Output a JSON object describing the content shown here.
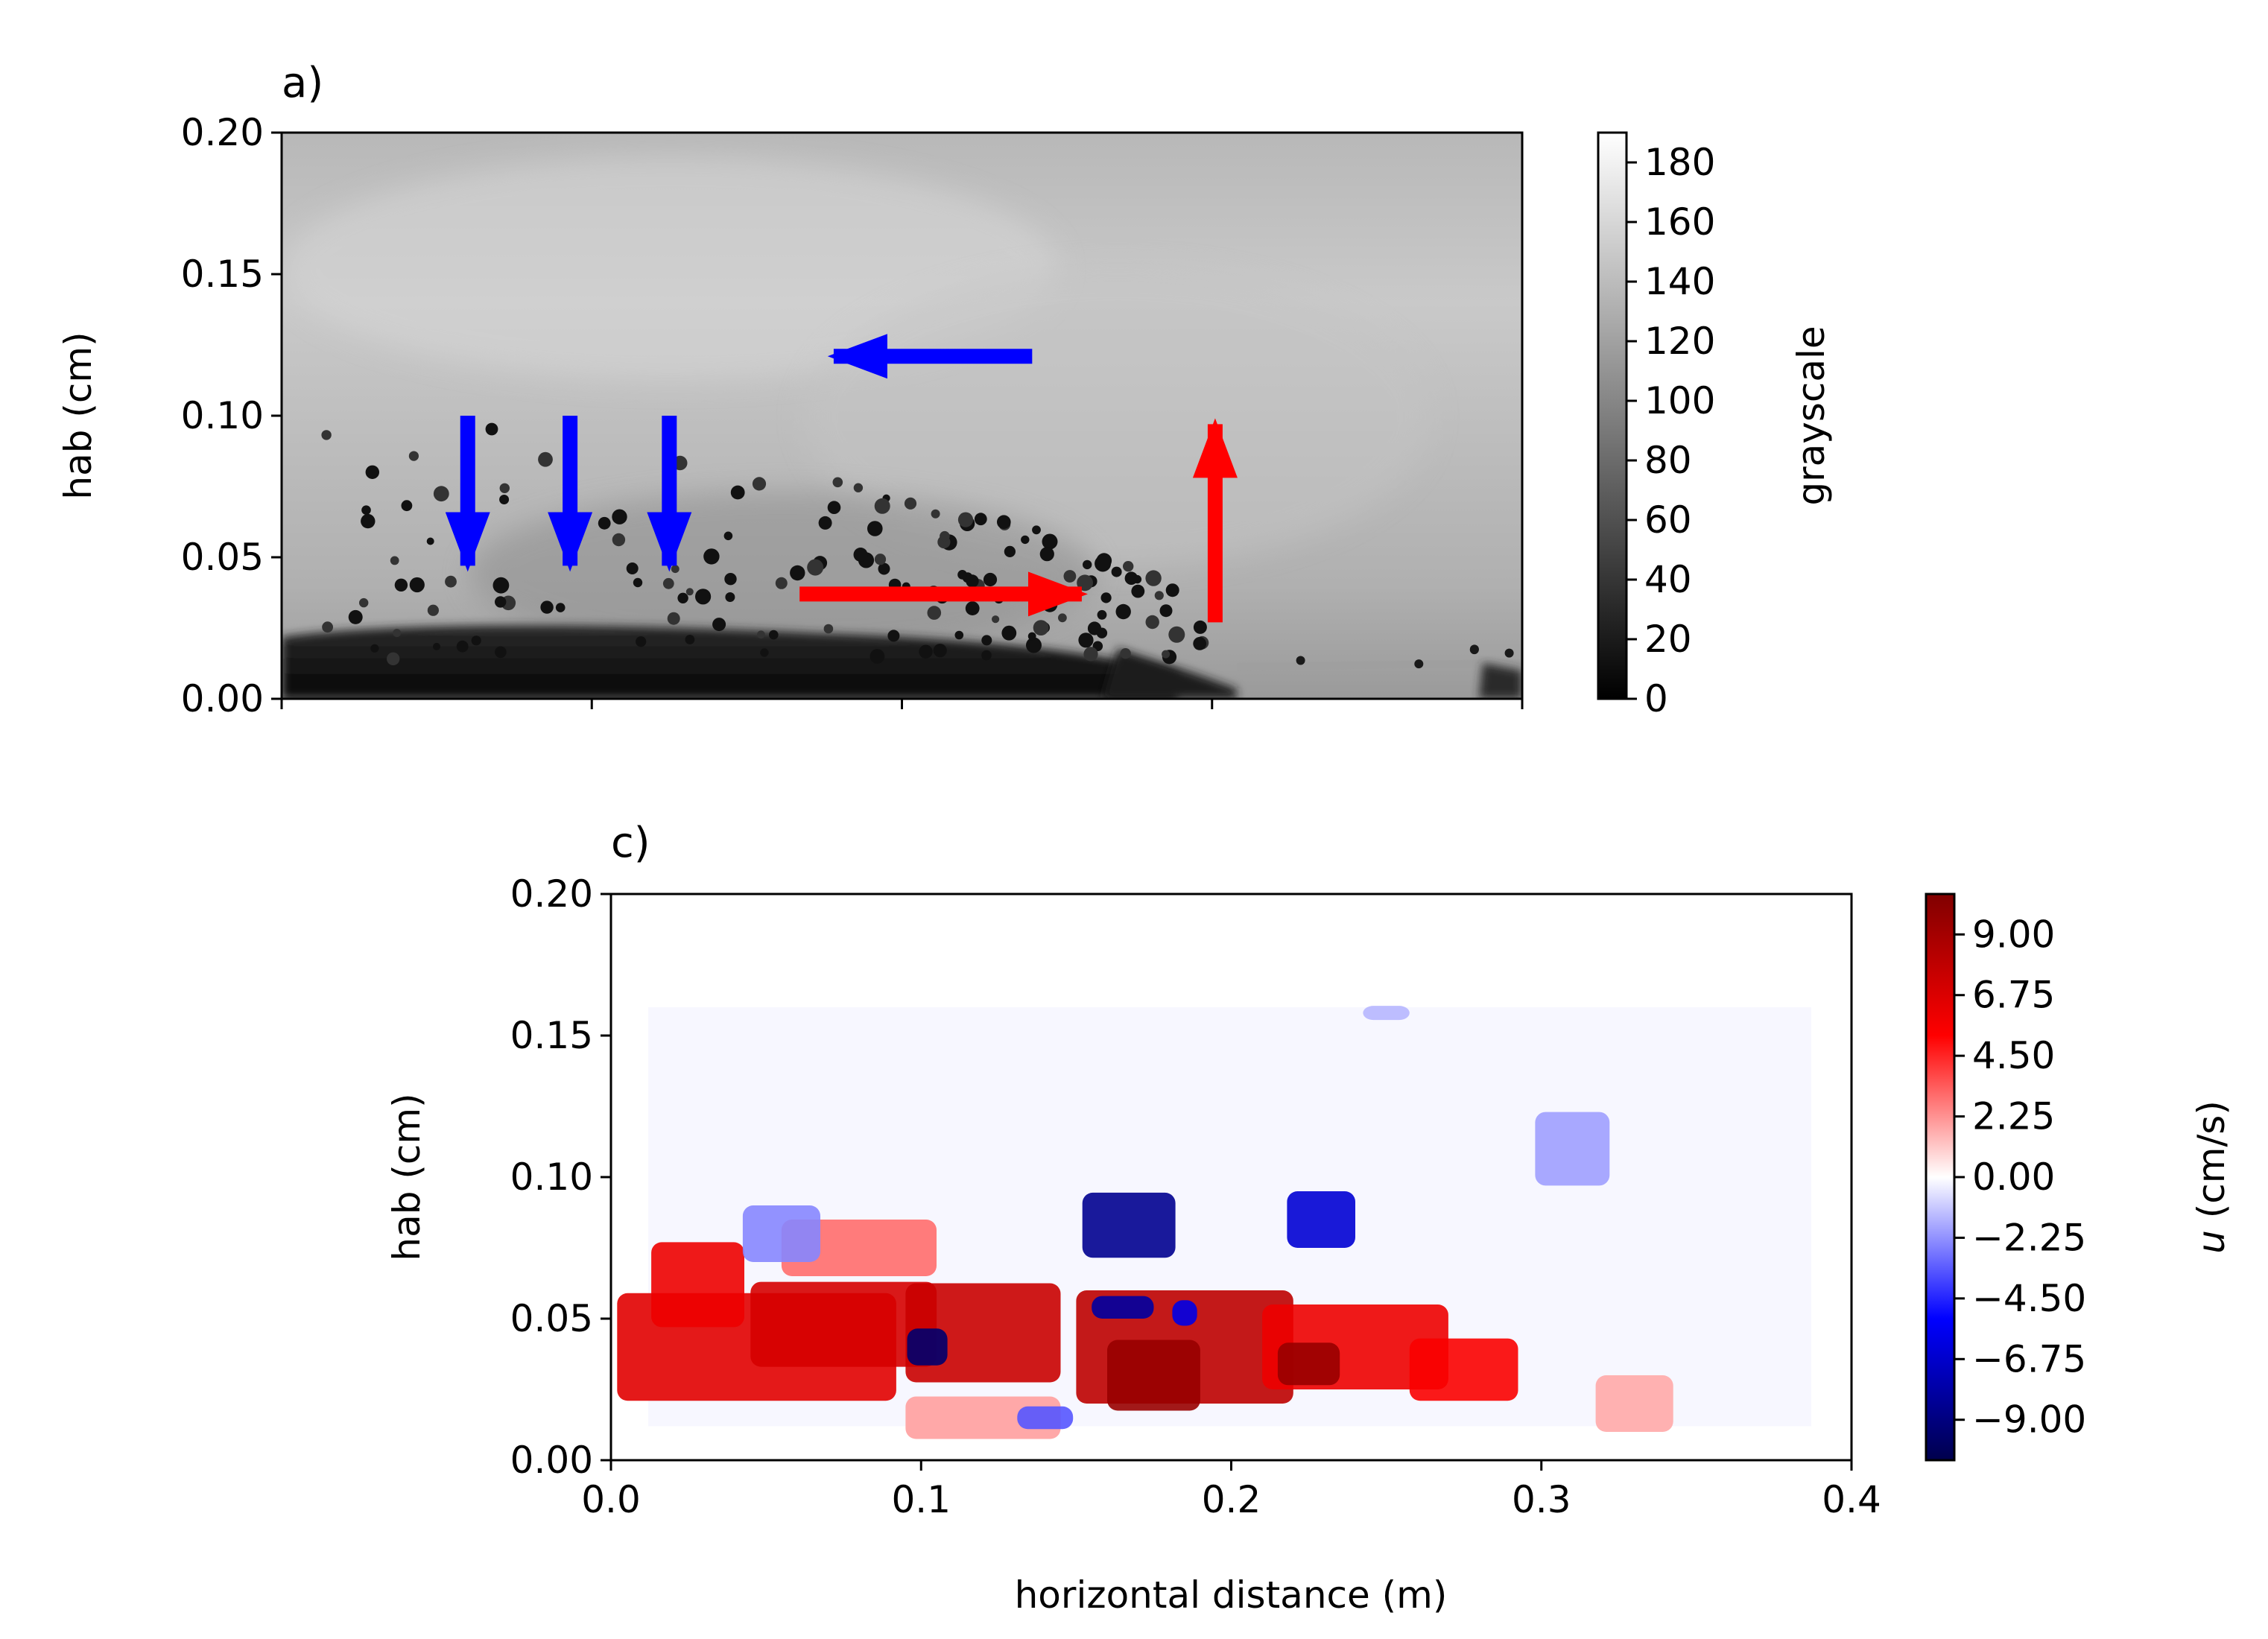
{
  "chart_data": [
    {
      "panel_label": "a)",
      "type": "image",
      "ylabel": "hab (cm)",
      "xlim": [
        0.0,
        0.4
      ],
      "ylim": [
        0.0,
        0.2
      ],
      "ytick_labels": [
        "0.00",
        "0.05",
        "0.10",
        "0.15",
        "0.20"
      ],
      "ytick_values": [
        0.0,
        0.05,
        0.1,
        0.15,
        0.2
      ],
      "xtick_values": [
        0.0,
        0.1,
        0.2,
        0.3,
        0.4
      ],
      "colorbar": {
        "label": "grayscale",
        "range": [
          0,
          190
        ],
        "tick_labels": [
          "0",
          "20",
          "40",
          "60",
          "80",
          "100",
          "120",
          "140",
          "160",
          "180"
        ],
        "tick_values": [
          0,
          20,
          40,
          60,
          80,
          100,
          120,
          140,
          160,
          180
        ]
      },
      "arrows": [
        {
          "color": "blue",
          "from": [
            0.06,
            0.1
          ],
          "to": [
            0.06,
            0.047
          ]
        },
        {
          "color": "blue",
          "from": [
            0.093,
            0.1
          ],
          "to": [
            0.093,
            0.047
          ]
        },
        {
          "color": "blue",
          "from": [
            0.125,
            0.1
          ],
          "to": [
            0.125,
            0.047
          ]
        },
        {
          "color": "blue",
          "from": [
            0.242,
            0.121
          ],
          "to": [
            0.178,
            0.121
          ]
        },
        {
          "color": "red",
          "from": [
            0.167,
            0.037
          ],
          "to": [
            0.258,
            0.037
          ]
        },
        {
          "color": "red",
          "from": [
            0.301,
            0.027
          ],
          "to": [
            0.301,
            0.097
          ]
        }
      ],
      "colors": {
        "blue_arrow": "#0000ff",
        "red_arrow": "#ff0000"
      }
    },
    {
      "panel_label": "c)",
      "type": "heatmap",
      "xlabel": "horizontal distance (m)",
      "ylabel": "hab (cm)",
      "xlim": [
        0.0,
        0.4
      ],
      "ylim": [
        0.0,
        0.2
      ],
      "xtick_labels": [
        "0.0",
        "0.1",
        "0.2",
        "0.3",
        "0.4"
      ],
      "xtick_values": [
        0.0,
        0.1,
        0.2,
        0.3,
        0.4
      ],
      "ytick_labels": [
        "0.00",
        "0.05",
        "0.10",
        "0.15",
        "0.20"
      ],
      "ytick_values": [
        0.0,
        0.05,
        0.1,
        0.15,
        0.2
      ],
      "field_extent": {
        "x": [
          0.012,
          0.387
        ],
        "y": [
          0.012,
          0.16
        ]
      },
      "colorbar": {
        "label_var": "u",
        "label_unit": " (cm/s)",
        "range": [
          -10.5,
          10.5
        ],
        "tick_labels": [
          "−9.00",
          "−6.75",
          "−4.50",
          "−2.25",
          "0.00",
          "2.25",
          "4.50",
          "6.75",
          "9.00"
        ],
        "tick_values": [
          -9.0,
          -6.75,
          -4.5,
          -2.25,
          0.0,
          2.25,
          4.5,
          6.75,
          9.0
        ],
        "colormap": "seismic"
      },
      "regions": [
        {
          "x": 0.047,
          "y": 0.04,
          "w": 0.09,
          "h": 0.038,
          "u": 6.5
        },
        {
          "x": 0.075,
          "y": 0.048,
          "w": 0.06,
          "h": 0.03,
          "u": 7.0
        },
        {
          "x": 0.028,
          "y": 0.062,
          "w": 0.03,
          "h": 0.03,
          "u": 6.0
        },
        {
          "x": 0.08,
          "y": 0.075,
          "w": 0.05,
          "h": 0.02,
          "u": 3.0
        },
        {
          "x": 0.12,
          "y": 0.045,
          "w": 0.05,
          "h": 0.035,
          "u": 7.5
        },
        {
          "x": 0.185,
          "y": 0.04,
          "w": 0.07,
          "h": 0.04,
          "u": 8.0
        },
        {
          "x": 0.175,
          "y": 0.03,
          "w": 0.03,
          "h": 0.025,
          "u": 9.5
        },
        {
          "x": 0.24,
          "y": 0.04,
          "w": 0.06,
          "h": 0.03,
          "u": 6.0
        },
        {
          "x": 0.275,
          "y": 0.032,
          "w": 0.035,
          "h": 0.022,
          "u": 5.5
        },
        {
          "x": 0.225,
          "y": 0.034,
          "w": 0.02,
          "h": 0.015,
          "u": 9.5
        },
        {
          "x": 0.33,
          "y": 0.02,
          "w": 0.025,
          "h": 0.02,
          "u": 1.8
        },
        {
          "x": 0.12,
          "y": 0.015,
          "w": 0.05,
          "h": 0.015,
          "u": 2.0
        },
        {
          "x": 0.055,
          "y": 0.08,
          "w": 0.025,
          "h": 0.02,
          "u": -2.5
        },
        {
          "x": 0.167,
          "y": 0.083,
          "w": 0.03,
          "h": 0.023,
          "u": -8.5
        },
        {
          "x": 0.229,
          "y": 0.085,
          "w": 0.022,
          "h": 0.02,
          "u": -6.5
        },
        {
          "x": 0.31,
          "y": 0.11,
          "w": 0.024,
          "h": 0.026,
          "u": -2.0
        },
        {
          "x": 0.102,
          "y": 0.04,
          "w": 0.013,
          "h": 0.013,
          "u": -9.5
        },
        {
          "x": 0.165,
          "y": 0.054,
          "w": 0.02,
          "h": 0.008,
          "u": -8.0
        },
        {
          "x": 0.185,
          "y": 0.052,
          "w": 0.008,
          "h": 0.009,
          "u": -6.0
        },
        {
          "x": 0.14,
          "y": 0.015,
          "w": 0.018,
          "h": 0.008,
          "u": -3.5
        },
        {
          "x": 0.25,
          "y": 0.158,
          "w": 0.015,
          "h": 0.005,
          "u": -1.5
        }
      ]
    }
  ]
}
